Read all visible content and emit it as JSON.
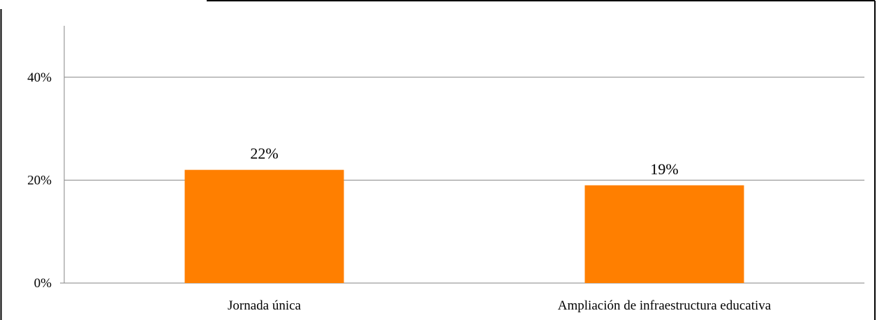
{
  "chart_data": {
    "type": "bar",
    "categories": [
      "Jornada única",
      "Ampliación de infraestructura educativa"
    ],
    "values": [
      22,
      19
    ],
    "data_labels": [
      "22%",
      "19%"
    ],
    "title": "",
    "xlabel": "",
    "ylabel": "",
    "ylim": [
      0,
      50
    ],
    "yticks": [
      0,
      20,
      40
    ],
    "ytick_labels": [
      "0%",
      "20%",
      "40%"
    ],
    "grid": true,
    "legend": "none"
  },
  "colors": {
    "bar": "#ff7f00",
    "gridline": "#868686",
    "frame": "#000000",
    "axis": "#868686"
  }
}
